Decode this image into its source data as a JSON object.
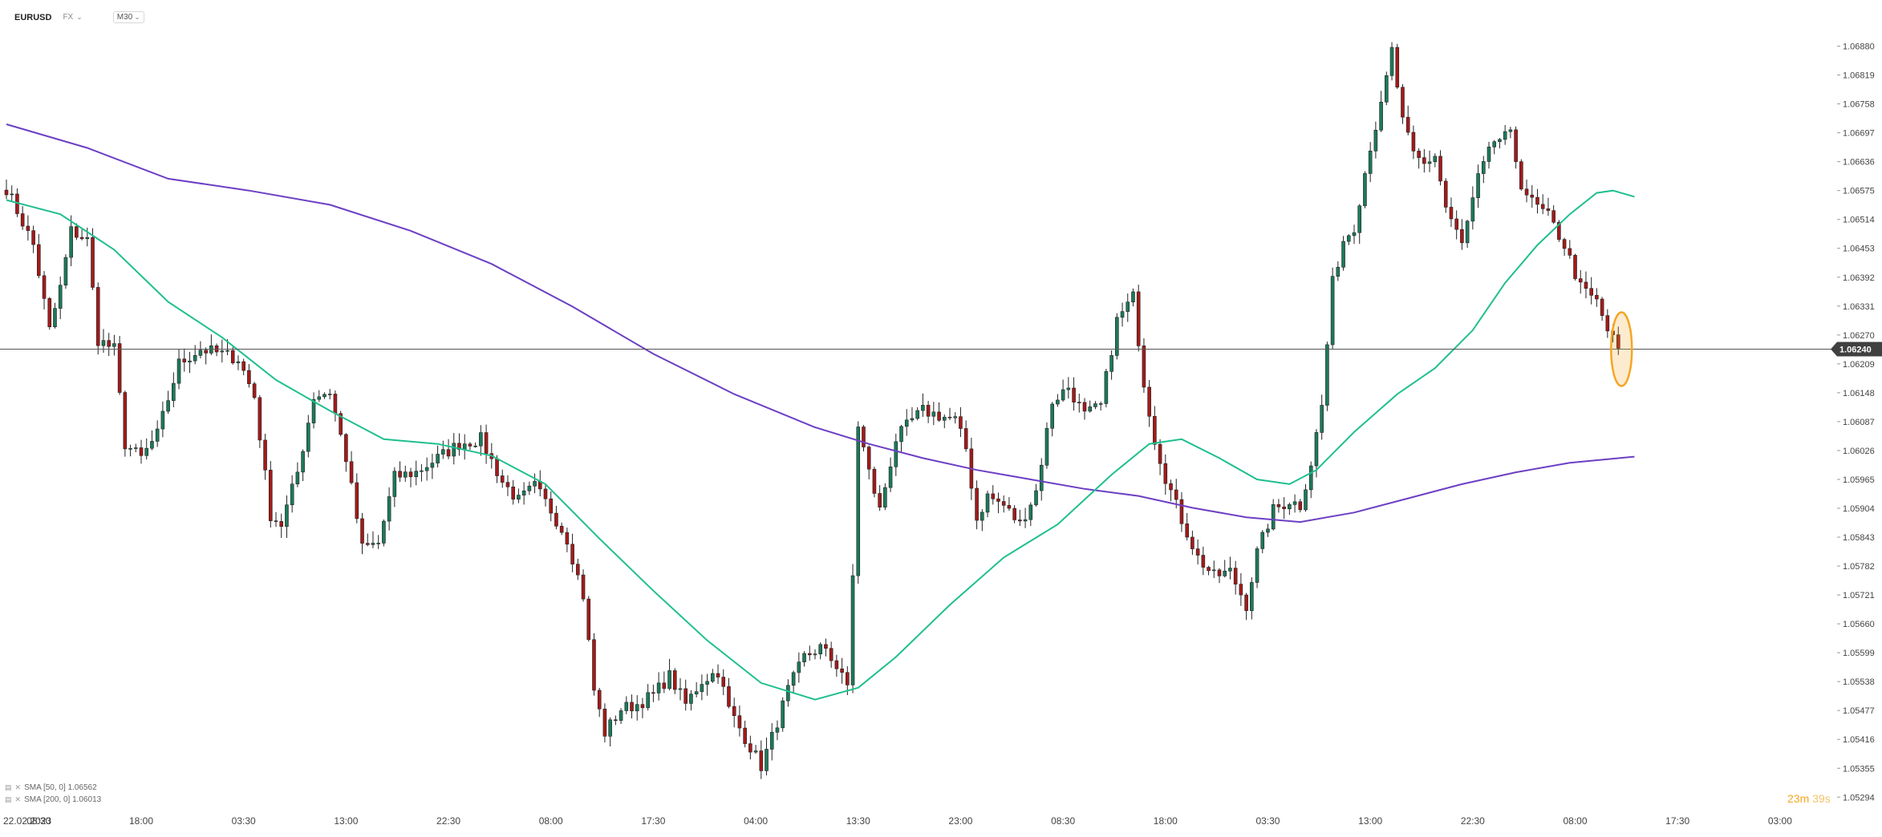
{
  "header": {
    "symbol": "EURUSD",
    "market": "FX",
    "timeframe": "M30"
  },
  "legend": {
    "sma50": "SMA [50, 0] 1.06562",
    "sma200": "SMA [200, 0] 1.06013"
  },
  "timer": {
    "minutes": "23m",
    "seconds": "39s"
  },
  "colors": {
    "bull": "#1b7a5a",
    "bear": "#a31a1a",
    "sma50": "#1fbf8f",
    "sma200": "#6c3fc4",
    "highlight": "#f5a623",
    "price_tag": "#404040"
  },
  "chart_data": {
    "type": "candlestick",
    "instrument": "EURUSD",
    "timeframe": "M30",
    "ylim": [
      1.05264,
      1.0693
    ],
    "y_ticks": [
      "1.06880",
      "1.06819",
      "1.06758",
      "1.06697",
      "1.06636",
      "1.06575",
      "1.06514",
      "1.06453",
      "1.06392",
      "1.06331",
      "1.06270",
      "1.06209",
      "1.06148",
      "1.06087",
      "1.06026",
      "1.05965",
      "1.05904",
      "1.05843",
      "1.05782",
      "1.05721",
      "1.05660",
      "1.05599",
      "1.05538",
      "1.05477",
      "1.05416",
      "1.05355",
      "1.05294"
    ],
    "current_price": "1.06240",
    "x_ticks": [
      {
        "label": "22.02.2023",
        "bar": 0
      },
      {
        "label": "08:30",
        "bar": 6
      },
      {
        "label": "18:00",
        "bar": 25
      },
      {
        "label": "03:30",
        "bar": 44
      },
      {
        "label": "13:00",
        "bar": 63
      },
      {
        "label": "22:30",
        "bar": 82
      },
      {
        "label": "08:00",
        "bar": 101
      },
      {
        "label": "17:30",
        "bar": 120
      },
      {
        "label": "04:00",
        "bar": 139
      },
      {
        "label": "13:30",
        "bar": 158
      },
      {
        "label": "23:00",
        "bar": 177
      },
      {
        "label": "08:30",
        "bar": 196
      },
      {
        "label": "18:00",
        "bar": 215
      },
      {
        "label": "03:30",
        "bar": 234
      },
      {
        "label": "13:00",
        "bar": 253
      },
      {
        "label": "22:30",
        "bar": 272
      },
      {
        "label": "08:00",
        "bar": 291
      },
      {
        "label": "17:30",
        "bar": 310
      },
      {
        "label": "03:00",
        "bar": 329
      }
    ],
    "anchors": [
      [
        0,
        1.0658
      ],
      [
        5,
        1.0646
      ],
      [
        8,
        1.0628
      ],
      [
        10,
        1.0637
      ],
      [
        12,
        1.0649
      ],
      [
        15,
        1.0647
      ],
      [
        17,
        1.0626
      ],
      [
        20,
        1.0624
      ],
      [
        22,
        1.0604
      ],
      [
        25,
        1.0601
      ],
      [
        28,
        1.0606
      ],
      [
        32,
        1.0621
      ],
      [
        36,
        1.0624
      ],
      [
        40,
        1.0623
      ],
      [
        43,
        1.0622
      ],
      [
        46,
        1.0614
      ],
      [
        49,
        1.0589
      ],
      [
        51,
        1.0587
      ],
      [
        54,
        1.0598
      ],
      [
        57,
        1.0614
      ],
      [
        60,
        1.0615
      ],
      [
        63,
        1.0601
      ],
      [
        66,
        1.0582
      ],
      [
        69,
        1.0583
      ],
      [
        72,
        1.0597
      ],
      [
        76,
        1.0598
      ],
      [
        80,
        1.0601
      ],
      [
        84,
        1.0604
      ],
      [
        88,
        1.0605
      ],
      [
        92,
        1.0596
      ],
      [
        95,
        1.0592
      ],
      [
        98,
        1.0595
      ],
      [
        101,
        1.059
      ],
      [
        104,
        1.0584
      ],
      [
        107,
        1.0572
      ],
      [
        109,
        1.0552
      ],
      [
        111,
        1.0543
      ],
      [
        114,
        1.0548
      ],
      [
        117,
        1.0549
      ],
      [
        120,
        1.0551
      ],
      [
        123,
        1.0555
      ],
      [
        126,
        1.0549
      ],
      [
        129,
        1.0554
      ],
      [
        132,
        1.0556
      ],
      [
        134,
        1.0548
      ],
      [
        137,
        1.0542
      ],
      [
        140,
        1.0536
      ],
      [
        142,
        1.0542
      ],
      [
        145,
        1.0552
      ],
      [
        148,
        1.0559
      ],
      [
        151,
        1.0561
      ],
      [
        155,
        1.0556
      ],
      [
        156,
        1.0552
      ],
      [
        157,
        1.0576
      ],
      [
        158,
        1.0608
      ],
      [
        160,
        1.0598
      ],
      [
        162,
        1.059
      ],
      [
        165,
        1.0605
      ],
      [
        168,
        1.0609
      ],
      [
        170,
        1.0611
      ],
      [
        173,
        1.061
      ],
      [
        176,
        1.0609
      ],
      [
        178,
        1.0603
      ],
      [
        180,
        1.0588
      ],
      [
        182,
        1.0593
      ],
      [
        185,
        1.0591
      ],
      [
        188,
        1.0587
      ],
      [
        191,
        1.0594
      ],
      [
        194,
        1.0613
      ],
      [
        197,
        1.0616
      ],
      [
        200,
        1.061
      ],
      [
        203,
        1.0612
      ],
      [
        206,
        1.063
      ],
      [
        209,
        1.0635
      ],
      [
        211,
        1.0617
      ],
      [
        213,
        1.0605
      ],
      [
        215,
        1.0597
      ],
      [
        218,
        1.0588
      ],
      [
        221,
        1.058
      ],
      [
        224,
        1.0576
      ],
      [
        227,
        1.0577
      ],
      [
        230,
        1.057
      ],
      [
        232,
        1.0581
      ],
      [
        235,
        1.059
      ],
      [
        238,
        1.0592
      ],
      [
        240,
        1.0591
      ],
      [
        242,
        1.06
      ],
      [
        244,
        1.0612
      ],
      [
        246,
        1.0638
      ],
      [
        248,
        1.0647
      ],
      [
        250,
        1.065
      ],
      [
        253,
        1.0667
      ],
      [
        255,
        1.0675
      ],
      [
        257,
        1.0687
      ],
      [
        259,
        1.0672
      ],
      [
        261,
        1.0665
      ],
      [
        263,
        1.0663
      ],
      [
        265,
        1.0665
      ],
      [
        267,
        1.0654
      ],
      [
        270,
        1.0646
      ],
      [
        273,
        1.066
      ],
      [
        276,
        1.0668
      ],
      [
        279,
        1.0669
      ],
      [
        281,
        1.0659
      ],
      [
        283,
        1.0655
      ],
      [
        286,
        1.0652
      ],
      [
        289,
        1.0646
      ],
      [
        292,
        1.0637
      ],
      [
        295,
        1.0634
      ],
      [
        297,
        1.0628
      ],
      [
        299,
        1.0624
      ]
    ],
    "sma50": {
      "name": "SMA [50, 0]",
      "points": [
        [
          0,
          1.06555
        ],
        [
          10,
          1.06525
        ],
        [
          20,
          1.0645
        ],
        [
          30,
          1.0634
        ],
        [
          40,
          1.06265
        ],
        [
          50,
          1.06175
        ],
        [
          60,
          1.0611
        ],
        [
          70,
          1.0605
        ],
        [
          80,
          1.0604
        ],
        [
          90,
          1.06015
        ],
        [
          100,
          1.05955
        ],
        [
          110,
          1.0584
        ],
        [
          120,
          1.0573
        ],
        [
          130,
          1.05625
        ],
        [
          140,
          1.05535
        ],
        [
          150,
          1.055
        ],
        [
          158,
          1.05525
        ],
        [
          165,
          1.0559
        ],
        [
          175,
          1.057
        ],
        [
          185,
          1.058
        ],
        [
          195,
          1.0587
        ],
        [
          205,
          1.05975
        ],
        [
          212,
          1.0604
        ],
        [
          218,
          1.0605
        ],
        [
          225,
          1.0601
        ],
        [
          232,
          1.05965
        ],
        [
          238,
          1.05955
        ],
        [
          243,
          1.05985
        ],
        [
          250,
          1.06065
        ],
        [
          258,
          1.06145
        ],
        [
          265,
          1.062
        ],
        [
          272,
          1.0628
        ],
        [
          278,
          1.0638
        ],
        [
          284,
          1.0646
        ],
        [
          290,
          1.06525
        ],
        [
          295,
          1.0657
        ],
        [
          298,
          1.06575
        ],
        [
          302,
          1.06562
        ]
      ]
    },
    "sma200": {
      "name": "SMA [200, 0]",
      "points": [
        [
          0,
          1.06715
        ],
        [
          15,
          1.06665
        ],
        [
          30,
          1.066
        ],
        [
          45,
          1.06575
        ],
        [
          60,
          1.06545
        ],
        [
          75,
          1.0649
        ],
        [
          90,
          1.0642
        ],
        [
          105,
          1.0633
        ],
        [
          120,
          1.0623
        ],
        [
          135,
          1.06145
        ],
        [
          150,
          1.06075
        ],
        [
          160,
          1.0604
        ],
        [
          170,
          1.0601
        ],
        [
          180,
          1.05985
        ],
        [
          190,
          1.05965
        ],
        [
          200,
          1.05945
        ],
        [
          210,
          1.0593
        ],
        [
          220,
          1.05905
        ],
        [
          230,
          1.05885
        ],
        [
          240,
          1.05875
        ],
        [
          250,
          1.05895
        ],
        [
          260,
          1.05925
        ],
        [
          270,
          1.05955
        ],
        [
          280,
          1.0598
        ],
        [
          290,
          1.06
        ],
        [
          302,
          1.06013
        ]
      ]
    }
  }
}
